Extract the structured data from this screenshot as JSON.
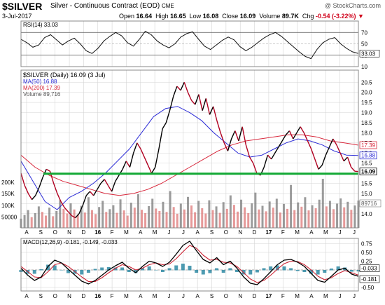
{
  "header": {
    "ticker": "$SILVER",
    "description": "Silver - Continuous Contract (EOD)",
    "exchange": "CME",
    "watermark": "@ StockCharts.com",
    "date": "3-Jul-2017",
    "open_label": "Open",
    "open": "16.64",
    "high_label": "High",
    "high": "16.65",
    "low_label": "Low",
    "low": "16.08",
    "close_label": "Close",
    "close": "16.09",
    "volume_label": "Volume",
    "volume": "89.7K",
    "change_label": "Chg",
    "change": "-0.54 (-3.22%)",
    "change_arrow": "▼"
  },
  "colors": {
    "price": "#000000",
    "down_segments": "#b00020",
    "ma50": "#2b2bd6",
    "ma200": "#d8283c",
    "support_line": "#12a834",
    "volume_up": "#7a7a7a",
    "volume_down": "#d77",
    "macd": "#000000",
    "signal": "#cc2233",
    "histogram": "#2f8aa3",
    "grid": "#d4d4d4"
  },
  "chart_data": [
    {
      "type": "line",
      "panel": "RSI",
      "legend": "RSI(14) 33.03",
      "ylim": [
        10,
        90
      ],
      "y_ticks": [
        "70",
        "50",
        "30",
        "10"
      ],
      "reference_levels": [
        70,
        30
      ],
      "current_label": "33.03",
      "values": [
        58,
        52,
        44,
        48,
        61,
        66,
        57,
        48,
        55,
        60,
        50,
        38,
        33,
        42,
        55,
        63,
        70,
        64,
        52,
        46,
        58,
        72,
        66,
        55,
        48,
        43,
        50,
        62,
        68,
        71,
        58,
        46,
        40,
        48,
        56,
        62,
        57,
        45,
        38,
        44,
        52,
        60,
        66,
        70,
        63,
        54,
        45,
        36,
        28,
        24,
        40,
        52,
        58,
        61,
        50,
        42,
        36,
        33
      ]
    },
    {
      "type": "line",
      "panel": "Price",
      "title": "$SILVER (Daily) 16.09 (3 Jul)",
      "ylim": [
        13.3,
        21.1
      ],
      "y_ticks": [
        "20.5",
        "20.0",
        "19.5",
        "19.0",
        "18.5",
        "18.0",
        "17.5",
        "17.0",
        "16.5",
        "16.0",
        "15.5",
        "15.0",
        "14.5",
        "14.0"
      ],
      "x_labels": [
        "A",
        "S",
        "O",
        "N",
        "D",
        "16",
        "F",
        "M",
        "A",
        "M",
        "J",
        "J",
        "A",
        "S",
        "O",
        "N",
        "D",
        "17",
        "F",
        "M",
        "A",
        "M",
        "J",
        "J"
      ],
      "series": [
        {
          "name": "$SILVER (Daily) 16.09",
          "values": [
            16.0,
            15.4,
            15.0,
            14.7,
            14.9,
            15.3,
            15.8,
            16.2,
            16.1,
            15.5,
            15.0,
            14.6,
            14.3,
            14.1,
            13.9,
            13.8,
            14.0,
            14.4,
            14.9,
            15.1,
            14.9,
            15.2,
            15.5,
            15.7,
            15.4,
            15.1,
            15.6,
            15.9,
            16.2,
            16.6,
            16.3,
            17.0,
            17.5,
            17.2,
            16.8,
            16.4,
            16.0,
            16.3,
            17.2,
            18.2,
            18.5,
            19.1,
            19.8,
            20.3,
            20.1,
            20.5,
            20.0,
            19.6,
            19.4,
            19.9,
            19.1,
            19.7,
            18.9,
            19.3,
            18.6,
            18.0,
            17.5,
            17.1,
            17.7,
            18.1,
            17.6,
            18.3,
            17.4,
            16.8,
            16.5,
            16.0,
            15.9,
            16.3,
            16.9,
            16.7,
            17.0,
            17.3,
            17.6,
            17.9,
            18.1,
            17.7,
            18.0,
            18.3,
            18.0,
            17.6,
            17.2,
            16.7,
            16.2,
            16.4,
            16.9,
            17.3,
            17.7,
            17.4,
            17.0,
            16.6,
            16.8,
            16.3,
            16.1,
            16.09
          ]
        },
        {
          "name": "MA(50) 16.88",
          "values": [
            16.6,
            15.6,
            14.6,
            14.2,
            14.8,
            15.1,
            15.5,
            16.0,
            16.6,
            17.2,
            18.0,
            18.8,
            19.2,
            19.3,
            19.0,
            18.6,
            18.0,
            17.5,
            17.0,
            16.8,
            16.9,
            17.2,
            17.5,
            17.7,
            17.6,
            17.4,
            17.1,
            16.9,
            16.88
          ]
        },
        {
          "name": "MA(200) 17.39",
          "values": [
            16.9,
            16.3,
            15.9,
            15.6,
            15.4,
            15.2,
            15.0,
            14.9,
            15.0,
            15.2,
            15.5,
            15.9,
            16.3,
            16.7,
            17.1,
            17.4,
            17.6,
            17.7,
            17.8,
            17.9,
            17.9,
            17.8,
            17.6,
            17.5,
            17.39
          ]
        }
      ],
      "support_level": 15.98,
      "value_labels": [
        "17.39",
        "16.88",
        "16.09"
      ]
    },
    {
      "type": "bar",
      "panel": "Volume",
      "legend": "Volume 89,716",
      "y_ticks": [
        "200K",
        "150K",
        "100K",
        "50000"
      ],
      "current_label": "89716",
      "values": [
        30,
        42,
        58,
        35,
        48,
        70,
        52,
        40,
        66,
        38,
        55,
        90,
        62,
        47,
        80,
        60,
        44,
        72,
        50,
        100,
        58,
        45,
        68,
        88,
        52,
        61,
        74,
        49,
        93,
        57,
        40,
        82,
        66,
        110,
        59,
        48,
        71,
        95,
        63,
        55,
        85,
        52,
        120,
        68,
        46,
        79,
        60,
        101,
        73,
        51,
        88,
        64,
        47,
        90,
        58,
        70,
        49,
        84,
        62,
        106,
        75,
        53,
        92,
        67,
        48,
        80,
        115,
        60,
        72,
        54,
        86,
        66,
        95,
        50,
        78,
        62,
        140,
        58,
        83,
        69,
        100,
        57,
        74,
        64,
        92,
        160,
        70,
        88,
        61,
        79,
        96,
        67,
        85,
        59,
        73,
        89
      ]
    },
    {
      "type": "line",
      "panel": "MACD",
      "legend": "MACD(12,26,9) -0.181, -0.149, -0.033",
      "y_ticks": [
        "0.75",
        "0.50",
        "0.25",
        "0.00",
        "-0.25",
        "-0.50"
      ],
      "ylim": [
        -0.6,
        0.9
      ],
      "value_labels": [
        "-0.033",
        "-0.181"
      ],
      "x_labels": [
        "A",
        "S",
        "O",
        "N",
        "D",
        "16",
        "F",
        "M",
        "A",
        "M",
        "J",
        "J",
        "A",
        "S",
        "O",
        "N",
        "D",
        "17",
        "F",
        "M",
        "A",
        "M",
        "J",
        "J"
      ],
      "series": [
        {
          "name": "MACD",
          "values": [
            0.05,
            -0.15,
            -0.3,
            -0.2,
            0.1,
            0.28,
            0.2,
            0.02,
            -0.15,
            -0.32,
            -0.4,
            -0.3,
            -0.15,
            0.0,
            0.12,
            0.22,
            0.05,
            -0.08,
            0.1,
            0.25,
            0.2,
            0.1,
            0.22,
            0.45,
            0.7,
            0.82,
            0.55,
            0.3,
            0.2,
            0.35,
            0.15,
            0.25,
            0.05,
            -0.2,
            -0.38,
            -0.42,
            -0.25,
            -0.05,
            0.15,
            0.28,
            0.3,
            0.22,
            0.1,
            -0.1,
            -0.3,
            -0.35,
            -0.18,
            0.0,
            0.05,
            -0.12,
            -0.181
          ]
        },
        {
          "name": "Signal",
          "values": [
            0.1,
            -0.05,
            -0.2,
            -0.22,
            -0.05,
            0.15,
            0.2,
            0.1,
            -0.05,
            -0.2,
            -0.33,
            -0.33,
            -0.22,
            -0.08,
            0.05,
            0.15,
            0.1,
            0.0,
            0.05,
            0.15,
            0.2,
            0.15,
            0.17,
            0.32,
            0.52,
            0.7,
            0.62,
            0.42,
            0.28,
            0.3,
            0.22,
            0.2,
            0.1,
            -0.08,
            -0.26,
            -0.36,
            -0.3,
            -0.15,
            0.02,
            0.18,
            0.25,
            0.24,
            0.15,
            0.0,
            -0.18,
            -0.28,
            -0.22,
            -0.1,
            -0.02,
            -0.08,
            -0.149
          ]
        }
      ],
      "histogram_last": -0.033
    }
  ]
}
